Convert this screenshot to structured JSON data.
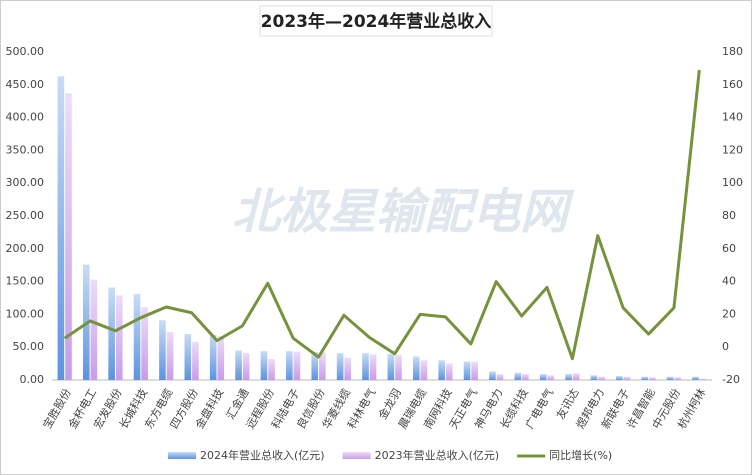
{
  "chart_data": {
    "type": "combo",
    "title": "2023年—2024年营业总收入",
    "watermark": "北极星输配电网",
    "categories": [
      "宝胜股份",
      "金杯电工",
      "宏发股份",
      "长城科技",
      "东方电缆",
      "四方股份",
      "金盘科技",
      "汇金通",
      "远程股份",
      "科陆电子",
      "良信股份",
      "华菱线缆",
      "科林电气",
      "金龙羽",
      "晨瑞电缆",
      "南网科技",
      "天正电气",
      "神马电力",
      "长缆科技",
      "广电电气",
      "友讯达",
      "煜邦电力",
      "新联电子",
      "许昌智能",
      "中元股份",
      "杭州柯林"
    ],
    "series": [
      {
        "name": "2024年营业总收入(亿元)",
        "type": "bar",
        "color": "#8ab4e8",
        "values": [
          463,
          176,
          141,
          131,
          91,
          70,
          69,
          45,
          44,
          44,
          43,
          41,
          41,
          40,
          36,
          30,
          28,
          13,
          11,
          9,
          9,
          7,
          6,
          5,
          5,
          5
        ]
      },
      {
        "name": "2023年营业总收入(亿元)",
        "type": "bar",
        "color": "#d9b6f2",
        "values": [
          437,
          153,
          129,
          111,
          73,
          58,
          67,
          41,
          32,
          43,
          42,
          34,
          39,
          38,
          30,
          25,
          28,
          9,
          9,
          7,
          10,
          5,
          5,
          4,
          4,
          2
        ]
      },
      {
        "name": "同比增长(%)",
        "type": "line",
        "axis": "y2",
        "color": "#76923c",
        "values": [
          5.5,
          16,
          10,
          18,
          24.5,
          21,
          4,
          13,
          39,
          5.5,
          -6,
          19.5,
          6,
          -4,
          20,
          18.5,
          2,
          40,
          19,
          36.5,
          -7,
          68,
          24,
          8,
          24,
          169
        ]
      }
    ],
    "ylim": [
      0,
      500
    ],
    "yticks": [
      {
        "value": 0,
        "label": "0.00"
      },
      {
        "value": 50,
        "label": "50.00"
      },
      {
        "value": 100,
        "label": "100.00"
      },
      {
        "value": 150,
        "label": "150.00"
      },
      {
        "value": 200,
        "label": "200.00"
      },
      {
        "value": 250,
        "label": "250.00"
      },
      {
        "value": 300,
        "label": "300.00"
      },
      {
        "value": 350,
        "label": "350.00"
      },
      {
        "value": 400,
        "label": "400.00"
      },
      {
        "value": 450,
        "label": "450.00"
      },
      {
        "value": 500,
        "label": "500.00"
      }
    ],
    "y2lim": [
      -20,
      180
    ],
    "y2ticks": [
      -20,
      0,
      20,
      40,
      60,
      80,
      100,
      120,
      140,
      160,
      180
    ],
    "grid": false
  }
}
